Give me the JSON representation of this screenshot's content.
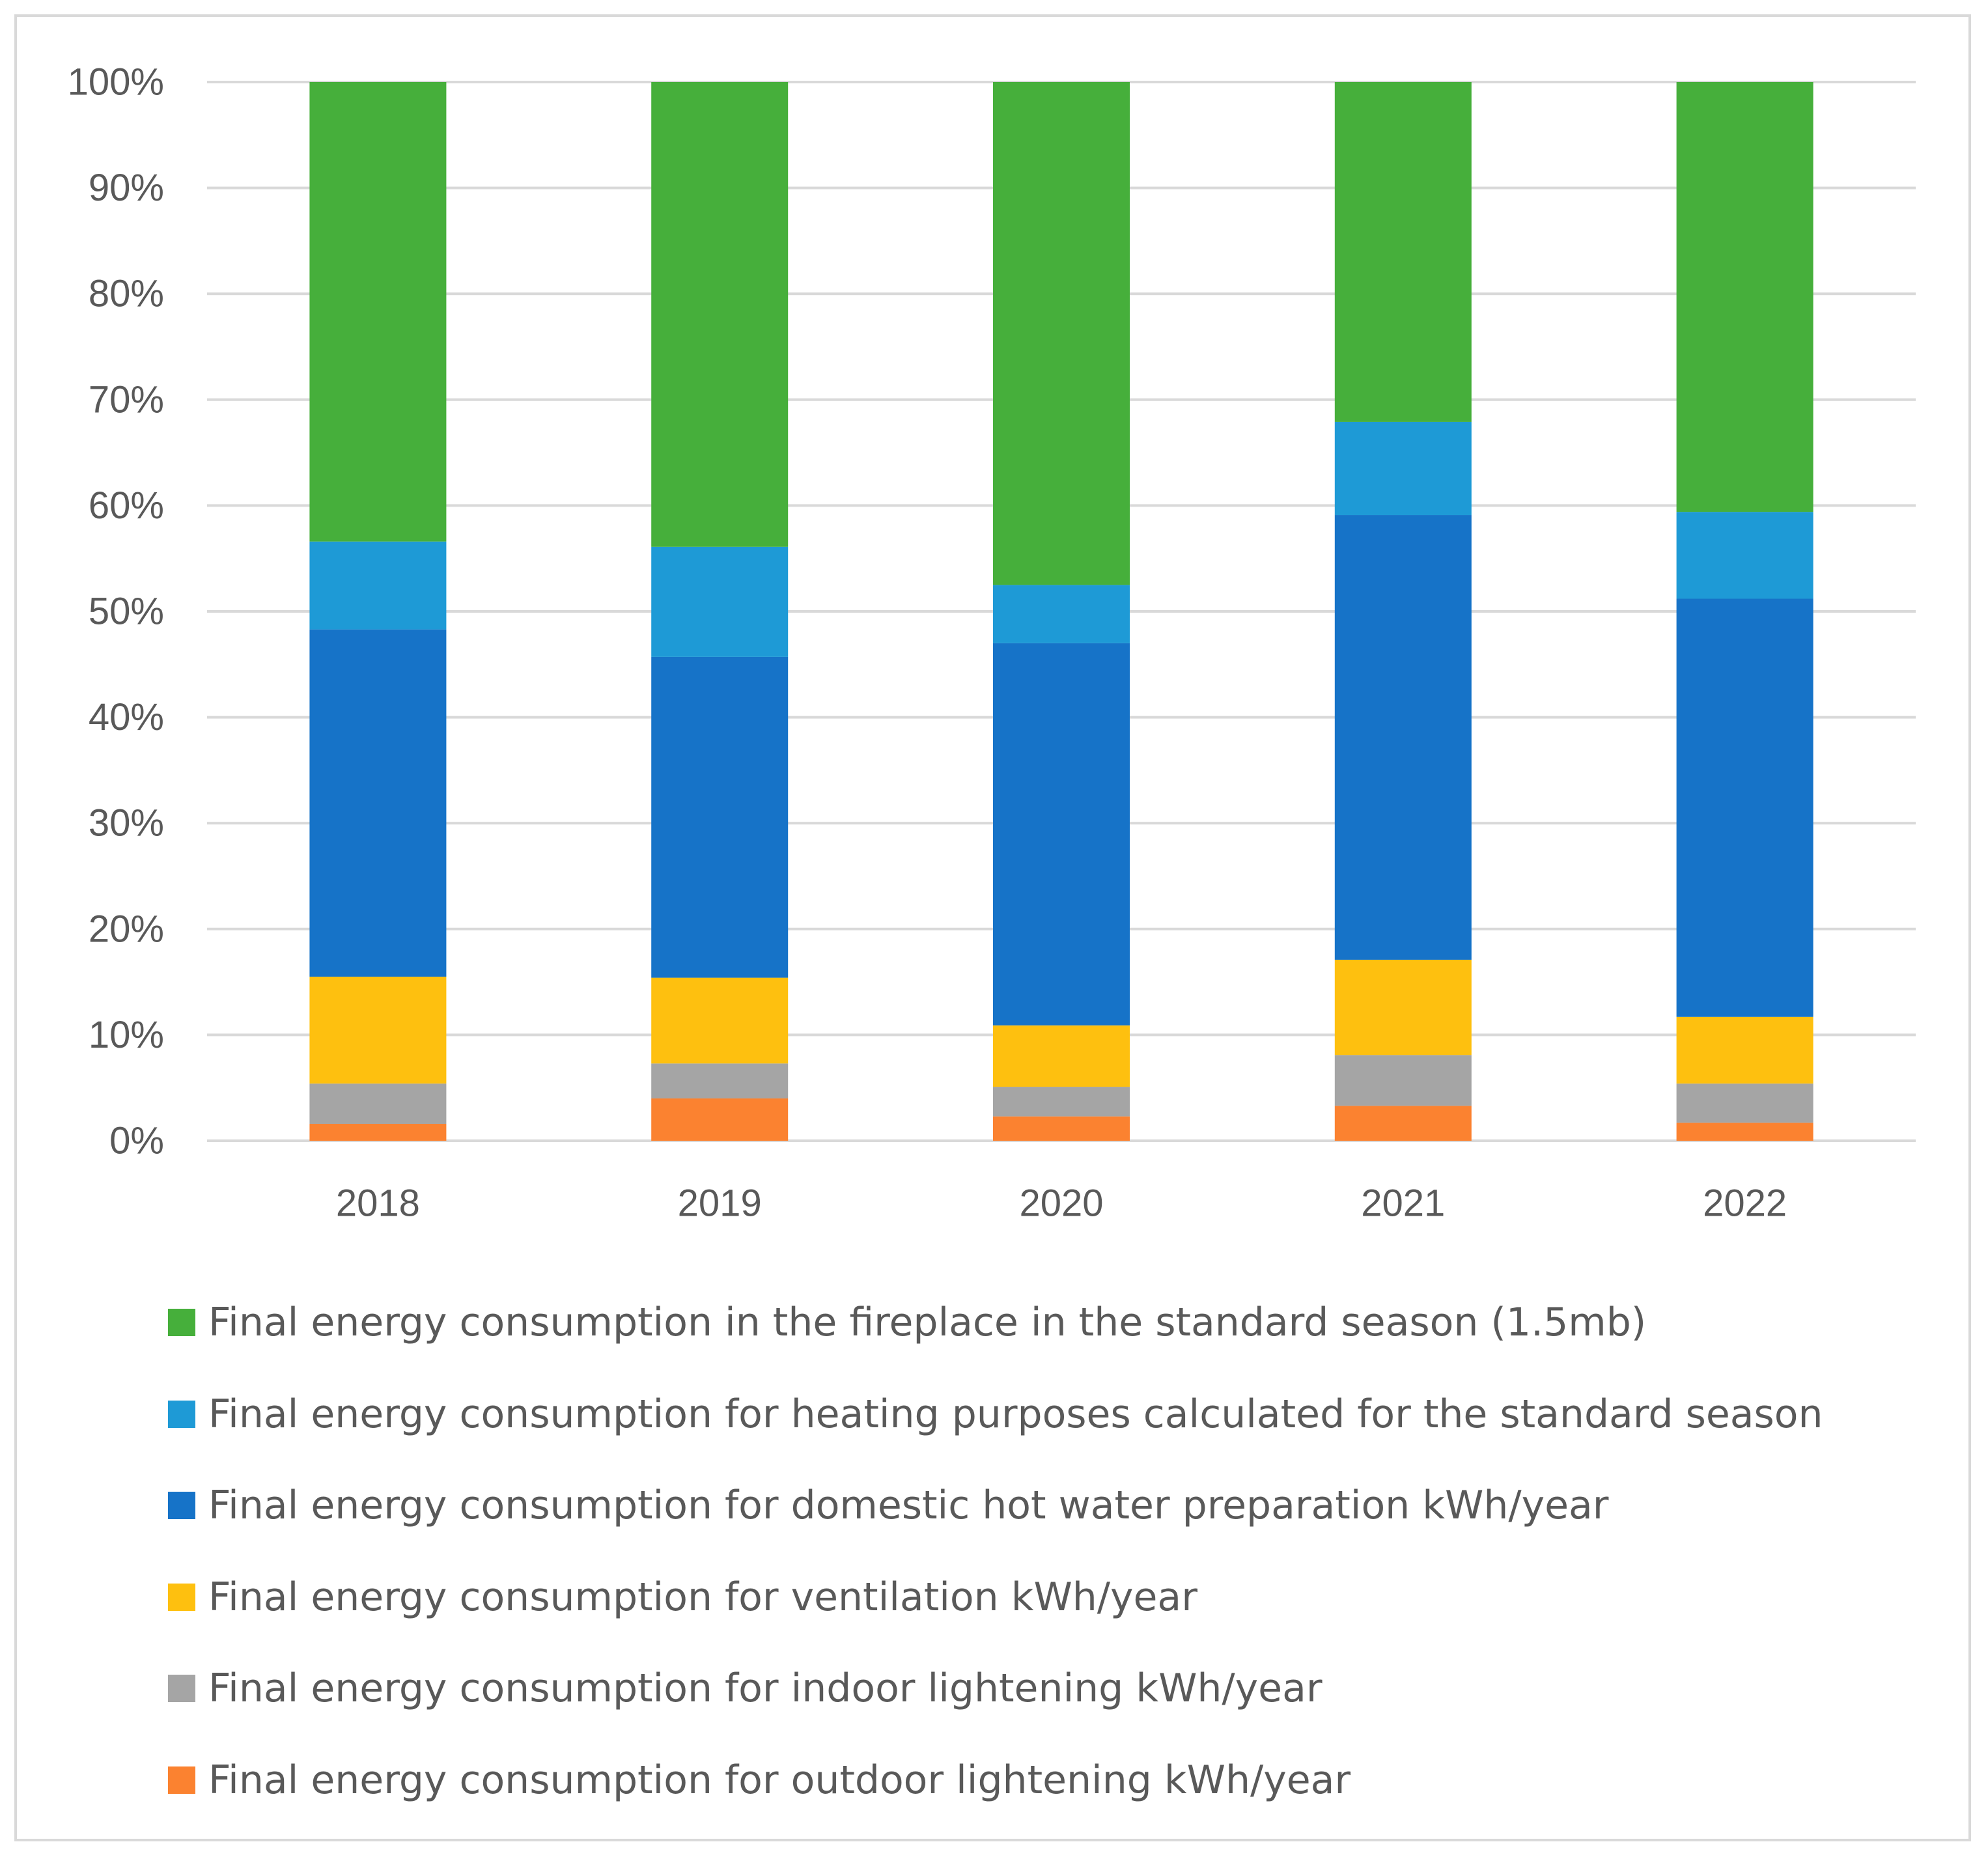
{
  "chart_data": {
    "type": "bar",
    "stacked": "percent",
    "title": "",
    "xlabel": "",
    "ylabel": "",
    "ylim": [
      0,
      100
    ],
    "y_ticks": [
      "0%",
      "10%",
      "20%",
      "30%",
      "40%",
      "50%",
      "60%",
      "70%",
      "80%",
      "90%",
      "100%"
    ],
    "categories": [
      "2018",
      "2019",
      "2020",
      "2021",
      "2022"
    ],
    "legend_position": "bottom",
    "grid": true,
    "series": [
      {
        "name": "Final energy consumption for outdoor lightening kWh/year",
        "color": "#fb8230",
        "values": [
          1.6,
          4.0,
          2.3,
          3.3,
          1.7
        ]
      },
      {
        "name": "Final energy consumption for indoor lightening kWh/year",
        "color": "#a5a5a5",
        "values": [
          3.8,
          3.3,
          2.8,
          4.8,
          3.7
        ]
      },
      {
        "name": "Final energy consumption for ventilation  kWh/year",
        "color": "#fec00f",
        "values": [
          10.1,
          8.1,
          5.8,
          9.0,
          6.3
        ]
      },
      {
        "name": "Final energy consumption for domestic hot water preparation  kWh/year",
        "color": "#1673c8",
        "values": [
          32.8,
          30.3,
          36.1,
          42.0,
          39.5
        ]
      },
      {
        "name": "Final energy consumption for heating purposes calculated for the standard season",
        "color": "#1e9ad6",
        "values": [
          8.3,
          10.4,
          5.5,
          8.8,
          8.2
        ]
      },
      {
        "name": "Final energy consumption in the fireplace in the standard season (1.5mb)",
        "color": "#46af3b",
        "values": [
          43.4,
          43.9,
          47.5,
          32.1,
          40.6
        ]
      }
    ]
  }
}
